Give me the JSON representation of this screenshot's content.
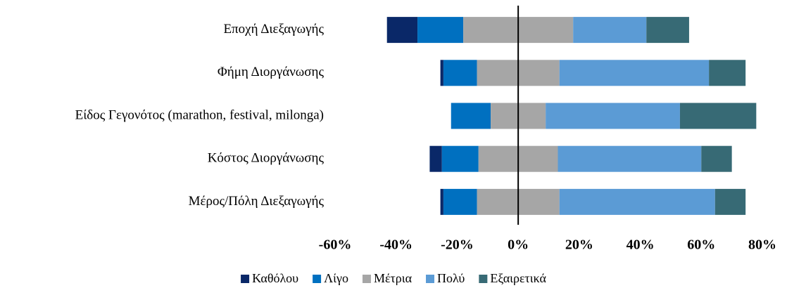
{
  "chart_data": {
    "type": "diverging",
    "categories": [
      "Εποχή Διεξαγωγής",
      "Φήμη Διοργάνωσης",
      "Είδος Γεγονότος (marathon, festival, milonga)",
      "Κόστος Διοργάνωσης",
      "Μέρος/Πόλη Διεξαγωγής"
    ],
    "series": [
      {
        "name": "Καθόλου",
        "color": "#0a2868",
        "values": [
          10,
          1,
          0,
          4,
          1
        ]
      },
      {
        "name": "Λίγο",
        "color": "#0070c0",
        "values": [
          15,
          11,
          13,
          12,
          11
        ]
      },
      {
        "name": "Μέτρια",
        "color": "#a6a6a6",
        "values": [
          36,
          27,
          18,
          26,
          27
        ]
      },
      {
        "name": "Πολύ",
        "color": "#5b9bd5",
        "values": [
          24,
          49,
          44,
          47,
          51
        ]
      },
      {
        "name": "Εξαιρετικά",
        "color": "#376a75",
        "values": [
          14,
          12,
          25,
          10,
          10
        ]
      }
    ],
    "center_series": 2,
    "xlim": [
      -60,
      80
    ],
    "xticks": [
      {
        "value": -60,
        "label": "-60%"
      },
      {
        "value": -40,
        "label": "-40%"
      },
      {
        "value": -20,
        "label": "-20%"
      },
      {
        "value": 0,
        "label": "0%"
      },
      {
        "value": 20,
        "label": "20%"
      },
      {
        "value": 40,
        "label": "40%"
      },
      {
        "value": 60,
        "label": "60%"
      },
      {
        "value": 80,
        "label": "80%"
      }
    ],
    "legend": "bottom"
  }
}
